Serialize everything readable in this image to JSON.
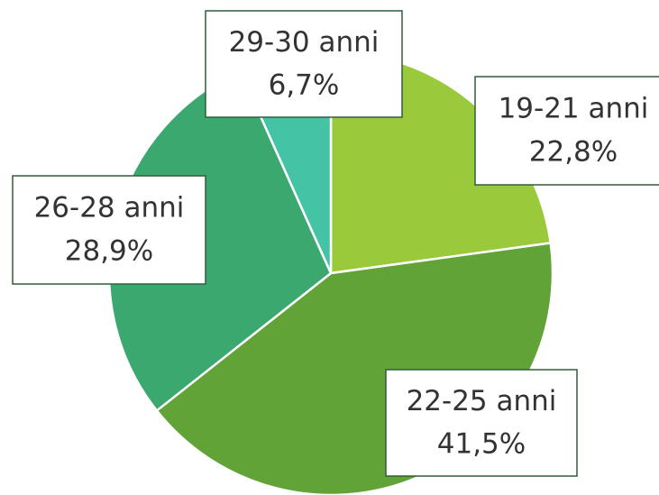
{
  "chart_data": {
    "type": "pie",
    "categories": [
      "19-21 anni",
      "22-25 anni",
      "26-28 anni",
      "29-30 anni"
    ],
    "values": [
      22.8,
      41.5,
      28.9,
      6.7
    ],
    "value_labels": [
      "22,8%",
      "41,5%",
      "28,9%",
      "6,7%"
    ],
    "colors": [
      "#9aca3c",
      "#62a337",
      "#3ba870",
      "#45c3a5"
    ]
  }
}
